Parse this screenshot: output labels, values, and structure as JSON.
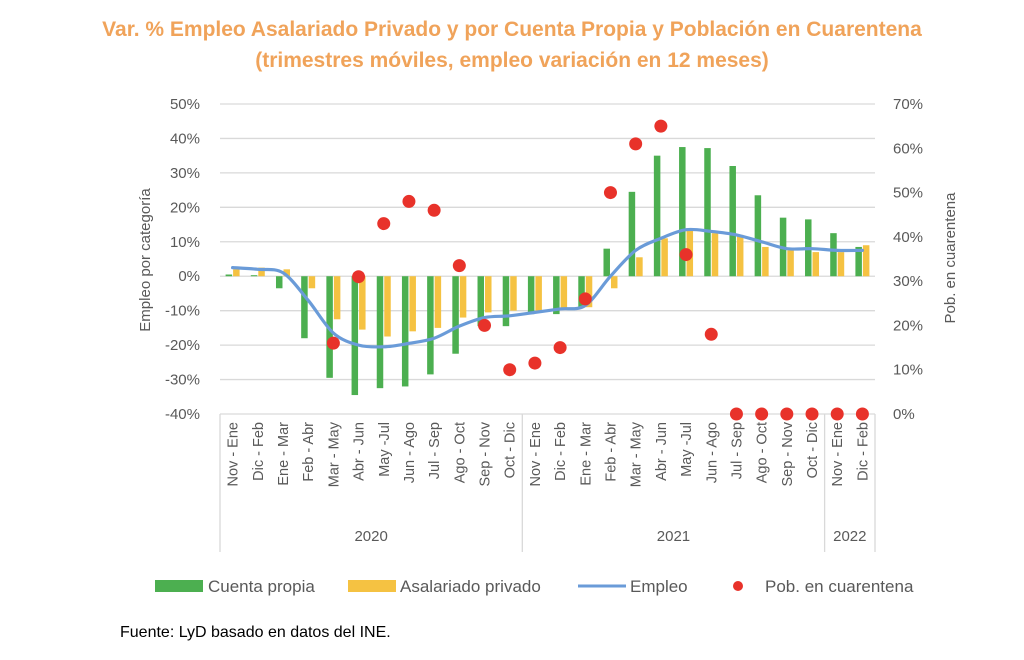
{
  "chart_data": {
    "type": "bar",
    "title": "Var. % Empleo Asalariado Privado y por Cuenta Propia y Población en Cuarentena",
    "subtitle": "(trimestres móviles, empleo variación en 12 meses)",
    "ylabel": "Empleo por categoría",
    "y2label": "Pob. en cuarentena",
    "ylim": [
      -40,
      50
    ],
    "y2lim": [
      0,
      70
    ],
    "yticks": [
      "-40%",
      "-30%",
      "-20%",
      "-10%",
      "0%",
      "10%",
      "20%",
      "30%",
      "40%",
      "50%"
    ],
    "y2ticks": [
      "0%",
      "10%",
      "20%",
      "30%",
      "40%",
      "50%",
      "60%",
      "70%"
    ],
    "grid": true,
    "legend_position": "bottom",
    "categories": [
      "Nov - Ene",
      "Dic - Feb",
      "Ene - Mar",
      "Feb - Abr",
      "Mar - May",
      "Abr - Jun",
      "May -Jul",
      "Jun - Ago",
      "Jul - Sep",
      "Ago - Oct",
      "Sep - Nov",
      "Oct - Dic",
      "Nov - Ene",
      "Dic - Feb",
      "Ene - Mar",
      "Feb - Abr",
      "Mar - May",
      "Abr - Jun",
      "May -Jul",
      "Jun - Ago",
      "Jul - Sep",
      "Ago - Oct",
      "Sep - Nov",
      "Oct - Dic",
      "Nov - Ene",
      "Dic - Feb"
    ],
    "groups": [
      {
        "label": "2020",
        "count": 12
      },
      {
        "label": "2021",
        "count": 12
      },
      {
        "label": "2022",
        "count": 2
      }
    ],
    "series": [
      {
        "name": "Cuenta propia",
        "type": "bar",
        "axis": "left",
        "color": "#4CAF50",
        "values": [
          0.5,
          0.3,
          -3.5,
          -18,
          -29.5,
          -34.5,
          -32.5,
          -32,
          -28.5,
          -22.5,
          -14.5,
          -14.5,
          -11,
          -11,
          -9,
          8,
          24.5,
          35,
          37.5,
          37.2,
          32,
          23.5,
          17,
          16.5,
          12.5,
          8.5
        ]
      },
      {
        "name": "Asalariado privado",
        "type": "bar",
        "axis": "left",
        "color": "#F5C242",
        "values": [
          2,
          2.5,
          2,
          -3.5,
          -12.5,
          -15.5,
          -17.5,
          -16,
          -15,
          -12,
          -10.5,
          -10,
          -10,
          -9.5,
          -9,
          -3.5,
          5.5,
          11,
          14,
          12.5,
          12,
          8.5,
          7.5,
          7,
          7,
          9
        ]
      },
      {
        "name": "Empleo",
        "type": "line",
        "axis": "left",
        "color": "#6A9BD8",
        "values": [
          2.5,
          2,
          1,
          -7,
          -16.5,
          -20,
          -20.5,
          -19.5,
          -18,
          -14.5,
          -12,
          -11.5,
          -10.5,
          -9.5,
          -8.5,
          0,
          7.5,
          11,
          13.5,
          13,
          12,
          10,
          8,
          8,
          7.5,
          7.5
        ]
      },
      {
        "name": "Pob. en cuarentena",
        "type": "scatter",
        "axis": "right",
        "color": "#E8322A",
        "values": [
          null,
          null,
          null,
          null,
          16,
          31,
          43,
          48,
          46,
          33.5,
          20,
          10,
          11.5,
          15,
          26,
          50,
          61,
          65,
          36,
          18,
          0,
          0,
          0,
          0,
          0,
          0
        ]
      }
    ]
  },
  "legend": {
    "items": [
      {
        "label": "Cuenta propia",
        "kind": "bar",
        "color": "#4CAF50"
      },
      {
        "label": "Asalariado privado",
        "kind": "bar",
        "color": "#F5C242"
      },
      {
        "label": "Empleo",
        "kind": "line",
        "color": "#6A9BD8"
      },
      {
        "label": "Pob. en cuarentena",
        "kind": "dot",
        "color": "#E8322A"
      }
    ]
  },
  "source": "Fuente: LyD basado en datos del INE."
}
